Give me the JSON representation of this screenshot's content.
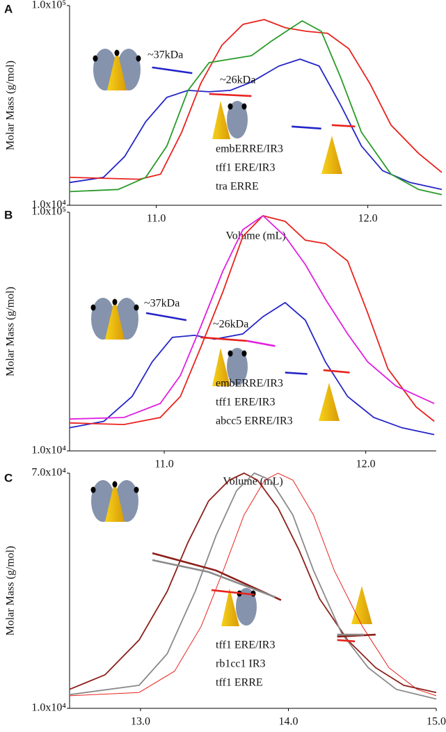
{
  "chart_data": [
    {
      "type": "line",
      "panel": "A",
      "ylabel": "Molar Mass (g/mol)",
      "xlabel": "Volume (mL)",
      "log_y": true,
      "xlim": [
        10.59,
        12.35
      ],
      "ylim": [
        10000,
        100000
      ],
      "xticks": [
        {
          "value": 11,
          "label": "11.0"
        },
        {
          "value": 12,
          "label": "12.0"
        }
      ],
      "yticks": [
        {
          "value": 10000,
          "label": "1.0x10⁴"
        },
        {
          "value": 100000,
          "label": "1.0x10⁵"
        }
      ],
      "annotations": [
        "~37kDa",
        "~26kDa"
      ],
      "series": [
        {
          "name": "embERRE/IR3",
          "color": "#2424c8",
          "x": [
            10.59,
            10.75,
            10.85,
            10.95,
            11.05,
            11.15,
            11.25,
            11.35,
            11.45,
            11.58,
            11.68,
            11.77,
            11.87,
            11.97,
            12.07,
            12.2,
            12.35
          ],
          "values": [
            13000,
            13800,
            17500,
            26200,
            34700,
            37600,
            37000,
            37600,
            41400,
            49800,
            53900,
            49800,
            32000,
            19800,
            14900,
            13000,
            12000
          ]
        },
        {
          "name": "tff1 ERE/IR3",
          "color": "#e8231e",
          "x": [
            10.59,
            10.92,
            11.02,
            11.12,
            11.21,
            11.31,
            11.41,
            11.51,
            11.61,
            11.71,
            11.81,
            11.91,
            12.01,
            12.11,
            12.24,
            12.35
          ],
          "values": [
            13800,
            13500,
            14300,
            23200,
            40700,
            63300,
            80500,
            85100,
            77400,
            74300,
            72600,
            60800,
            40700,
            25200,
            18200,
            14600
          ]
        },
        {
          "name": "tra ERRE",
          "color": "#2a9a2a",
          "x": [
            10.59,
            10.82,
            10.95,
            11.05,
            11.15,
            11.25,
            11.35,
            11.45,
            11.54,
            11.64,
            11.69,
            11.78,
            11.87,
            11.97,
            12.11,
            12.24,
            12.35
          ],
          "values": [
            11700,
            12000,
            13800,
            19800,
            37600,
            51800,
            53900,
            56100,
            65900,
            77400,
            83800,
            74300,
            44100,
            23200,
            14300,
            12000,
            11300
          ]
        }
      ],
      "mass_series": [
        {
          "color": "#2424c8",
          "x": [
            10.98,
            11.17
          ],
          "values": [
            49000,
            45900
          ]
        },
        {
          "color": "#2424c8",
          "x": [
            11.64,
            11.78
          ],
          "values": [
            24800,
            24200
          ]
        },
        {
          "color": "#e8231e",
          "x": [
            11.25,
            11.45
          ],
          "values": [
            36100,
            35200
          ]
        },
        {
          "color": "#e8231e",
          "x": [
            11.83,
            11.94
          ],
          "values": [
            25200,
            24800
          ]
        }
      ]
    },
    {
      "type": "line",
      "panel": "B",
      "ylabel": "Molar Mass (g/mol)",
      "xlabel": "Volume (mL)",
      "log_y": true,
      "xlim": [
        10.53,
        12.35
      ],
      "ylim": [
        10000,
        100000
      ],
      "xticks": [
        {
          "value": 11,
          "label": "11.0"
        },
        {
          "value": 12,
          "label": "12.0"
        }
      ],
      "yticks": [
        {
          "value": 10000,
          "label": "1.0x10⁴"
        },
        {
          "value": 100000,
          "label": "1.0x10⁵"
        }
      ],
      "annotations": [
        "~37kDa",
        "~26kDa"
      ],
      "series": [
        {
          "name": "embERRE/IR3",
          "color": "#2424c8",
          "x": [
            10.53,
            10.7,
            10.84,
            10.94,
            11.04,
            11.15,
            11.25,
            11.39,
            11.49,
            11.6,
            11.7,
            11.8,
            11.91,
            12.04,
            12.18,
            12.34
          ],
          "values": [
            12500,
            13300,
            16900,
            23600,
            29900,
            30500,
            29400,
            30900,
            36500,
            41800,
            35300,
            23600,
            16900,
            13800,
            12500,
            11700
          ]
        },
        {
          "name": "tff1 ERE/IR3",
          "color": "#e8231e",
          "x": [
            10.53,
            10.8,
            10.98,
            11.08,
            11.18,
            11.29,
            11.39,
            11.49,
            11.6,
            11.7,
            11.8,
            11.91,
            12.01,
            12.11,
            12.25,
            12.34
          ],
          "values": [
            13100,
            12900,
            13800,
            16900,
            27000,
            46200,
            79100,
            96700,
            91600,
            76400,
            73900,
            62500,
            37800,
            22100,
            15300,
            13300
          ]
        },
        {
          "name": "abcc5 ERRE/IR3",
          "color": "#e020e0",
          "x": [
            10.53,
            10.8,
            10.98,
            11.08,
            11.18,
            11.29,
            11.39,
            11.49,
            11.6,
            11.7,
            11.8,
            11.91,
            12.01,
            12.15,
            12.34
          ],
          "values": [
            13600,
            13800,
            15800,
            20700,
            33000,
            56500,
            84500,
            96700,
            79100,
            60400,
            43200,
            30900,
            23600,
            18700,
            15800
          ]
        }
      ],
      "mass_series": [
        {
          "color": "#2424c8",
          "x": [
            10.91,
            11.11
          ],
          "values": [
            37800,
            35300
          ]
        },
        {
          "color": "#e8231e",
          "x": [
            11.18,
            11.41
          ],
          "values": [
            29900,
            28900
          ]
        },
        {
          "color": "#e020e0",
          "x": [
            11.41,
            11.55
          ],
          "values": [
            28900,
            27500
          ]
        },
        {
          "color": "#2424c8",
          "x": [
            11.6,
            11.71
          ],
          "values": [
            21300,
            21000
          ]
        },
        {
          "color": "#e8231e",
          "x": [
            11.79,
            11.92
          ],
          "values": [
            21800,
            21300
          ]
        }
      ]
    },
    {
      "type": "line",
      "panel": "C",
      "ylabel": "Molar Mass (g/mol)",
      "xlabel": "Volume (mL)",
      "log_y": true,
      "xlim": [
        12.52,
        15.0
      ],
      "ylim": [
        10000,
        70000
      ],
      "xticks": [
        {
          "value": 13,
          "label": "13.0"
        },
        {
          "value": 14,
          "label": "14.0"
        },
        {
          "value": 15,
          "label": "15.0"
        }
      ],
      "yticks": [
        {
          "value": 10000,
          "label": "1.0x10⁴"
        },
        {
          "value": 70000,
          "label": "7.0x10⁴"
        }
      ],
      "series": [
        {
          "name": "tff1 ERE/IR3",
          "color": "#e8231e",
          "x": [
            12.52,
            12.99,
            13.23,
            13.41,
            13.56,
            13.7,
            13.84,
            13.93,
            14.03,
            14.17,
            14.31,
            14.5,
            14.68,
            14.87,
            15.0
          ],
          "values": [
            11100,
            11400,
            13600,
            19700,
            31300,
            49500,
            66100,
            70000,
            66100,
            49500,
            31300,
            19700,
            14000,
            11700,
            11100
          ]
        },
        {
          "name": "rb1cc1 IR3",
          "color": "#8b1f1a",
          "x": [
            12.52,
            12.76,
            12.99,
            13.18,
            13.32,
            13.46,
            13.6,
            13.7,
            13.79,
            13.93,
            14.07,
            14.21,
            14.4,
            14.59,
            14.78,
            15.0
          ],
          "values": [
            11700,
            13200,
            17600,
            26300,
            39400,
            55600,
            66100,
            70000,
            66100,
            52500,
            37200,
            24800,
            17600,
            14000,
            12100,
            11400
          ]
        },
        {
          "name": "tff1 ERRE",
          "color": "#8a8a8a",
          "x": [
            12.52,
            12.99,
            13.18,
            13.37,
            13.51,
            13.65,
            13.77,
            13.88,
            14.03,
            14.17,
            14.36,
            14.54,
            14.73,
            15.0
          ],
          "values": [
            11200,
            12100,
            15700,
            26300,
            41700,
            60600,
            70000,
            66100,
            49500,
            31300,
            18600,
            14000,
            11700,
            10800
          ]
        }
      ],
      "mass_series": [
        {
          "color": "#8b1f1a",
          "x": [
            13.08,
            13.51,
            13.95
          ],
          "values": [
            36100,
            31300,
            24500
          ]
        },
        {
          "color": "#8a8a8a",
          "x": [
            13.08,
            13.46,
            13.91
          ],
          "values": [
            34100,
            30900,
            25100
          ]
        },
        {
          "color": "#e8231e",
          "x": [
            13.48,
            13.77
          ],
          "values": [
            26600,
            25600
          ]
        },
        {
          "color": "#8b1f1a",
          "x": [
            14.33,
            14.59
          ],
          "values": [
            18100,
            18400
          ]
        },
        {
          "color": "#8a8a8a",
          "x": [
            14.33,
            14.51
          ],
          "values": [
            18400,
            18400
          ]
        },
        {
          "color": "#e8231e",
          "x": [
            14.33,
            14.45
          ],
          "values": [
            17600,
            17400
          ]
        }
      ]
    }
  ]
}
